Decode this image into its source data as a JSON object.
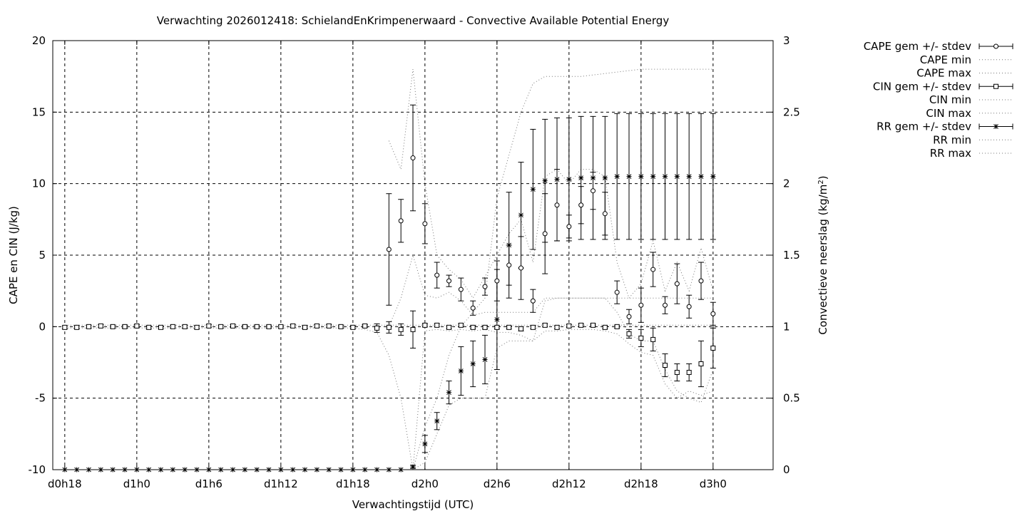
{
  "chart_data": {
    "type": "line",
    "title": "Verwachting 2026012418: SchielandEnKrimpenerwaard - Convective Available Potential Energy",
    "xlabel": "Verwachtingstijd (UTC)",
    "ylabel": "CAPE en CIN (J/kg)",
    "y2label_main": "Convectieve neerslag (kg/m",
    "y2label_sup": "2",
    "y2label_end": ")",
    "xlim": [
      -1,
      59
    ],
    "ylim": [
      -10,
      20
    ],
    "y2lim": [
      0,
      3
    ],
    "grid": true,
    "legend_position": "top-right outside",
    "x_ticks": [
      {
        "x": 0,
        "label": "d0h18"
      },
      {
        "x": 6,
        "label": "d1h0"
      },
      {
        "x": 12,
        "label": "d1h6"
      },
      {
        "x": 18,
        "label": "d1h12"
      },
      {
        "x": 24,
        "label": "d1h18"
      },
      {
        "x": 30,
        "label": "d2h0"
      },
      {
        "x": 36,
        "label": "d2h6"
      },
      {
        "x": 42,
        "label": "d2h12"
      },
      {
        "x": 48,
        "label": "d2h18"
      },
      {
        "x": 54,
        "label": "d3h0"
      }
    ],
    "y_ticks": [
      {
        "v": -10,
        "label": "-10"
      },
      {
        "v": -5,
        "label": "-5"
      },
      {
        "v": 0,
        "label": "0"
      },
      {
        "v": 5,
        "label": "5"
      },
      {
        "v": 10,
        "label": "10"
      },
      {
        "v": 15,
        "label": "15"
      },
      {
        "v": 20,
        "label": "20"
      }
    ],
    "y2_ticks": [
      {
        "v": 0,
        "label": "0"
      },
      {
        "v": 0.5,
        "label": "0.5"
      },
      {
        "v": 1,
        "label": "1"
      },
      {
        "v": 1.5,
        "label": "1.5"
      },
      {
        "v": 2,
        "label": "2"
      },
      {
        "v": 2.5,
        "label": "2.5"
      },
      {
        "v": 3,
        "label": "3"
      }
    ],
    "series": [
      {
        "name": "CAPE gem +/- stdev",
        "axis": "y",
        "marker": "circle",
        "style": "errorbars",
        "x": [
          27,
          28,
          29,
          30,
          31,
          32,
          33,
          34,
          35,
          36,
          37,
          38,
          39,
          40,
          41,
          42,
          43,
          44,
          45,
          46,
          47,
          48,
          49,
          50,
          51,
          52,
          53,
          54
        ],
        "y": [
          5.4,
          7.4,
          11.8,
          7.2,
          3.6,
          3.2,
          2.6,
          1.3,
          2.8,
          3.2,
          4.3,
          4.1,
          1.8,
          6.5,
          8.5,
          7.0,
          8.5,
          9.5,
          7.9,
          2.4,
          0.7,
          1.5,
          4.0,
          1.5,
          3.0,
          1.4,
          3.2,
          0.9
        ],
        "err": [
          3.9,
          1.5,
          3.7,
          1.4,
          0.9,
          0.4,
          0.8,
          0.5,
          0.6,
          1.4,
          1.4,
          2.2,
          0.8,
          2.8,
          2.5,
          0.8,
          1.3,
          1.3,
          1.5,
          0.8,
          0.5,
          1.2,
          1.2,
          0.6,
          1.4,
          0.8,
          1.3,
          0.8
        ]
      },
      {
        "name": "CAPE min",
        "axis": "y",
        "style": "dotted",
        "x": [
          27,
          28,
          29,
          30,
          31,
          32,
          33,
          34,
          35,
          36,
          37,
          38,
          39,
          40,
          41,
          42,
          43,
          44,
          45,
          46,
          47,
          48,
          49,
          50,
          51,
          52,
          53,
          54
        ],
        "y": [
          0.0,
          2.0,
          5.0,
          2.2,
          2.0,
          2.4,
          1.8,
          0.8,
          1.0,
          1.0,
          1.0,
          1.0,
          1.0,
          2.0,
          2.0,
          2.0,
          2.0,
          2.0,
          2.0,
          1.0,
          -0.5,
          -1.0,
          -1.0,
          -3.0,
          -4.5,
          -5.0,
          -5.3,
          -3.0
        ]
      },
      {
        "name": "CAPE max",
        "axis": "y",
        "style": "dotted",
        "x": [
          27,
          28,
          29,
          30,
          31,
          32,
          33,
          34,
          35,
          36,
          37,
          38,
          39,
          40,
          41,
          42,
          43,
          44,
          45,
          46,
          47,
          48,
          49,
          50,
          51,
          52,
          53,
          54
        ],
        "y": [
          13.0,
          11.0,
          18.0,
          10.0,
          5.0,
          4.0,
          3.3,
          2.0,
          3.5,
          5.0,
          6.5,
          7.5,
          4.5,
          10.5,
          11.0,
          10.0,
          11.0,
          11.0,
          10.5,
          4.5,
          2.0,
          3.0,
          6.0,
          2.5,
          4.5,
          2.5,
          5.5,
          2.5
        ]
      },
      {
        "name": "CIN gem +/- stdev",
        "axis": "y",
        "marker": "square",
        "style": "errorbars",
        "x": [
          0,
          1,
          2,
          3,
          4,
          5,
          6,
          7,
          8,
          9,
          10,
          11,
          12,
          13,
          14,
          15,
          16,
          17,
          18,
          19,
          20,
          21,
          22,
          23,
          24,
          25,
          26,
          27,
          28,
          29,
          30,
          31,
          32,
          33,
          34,
          35,
          36,
          37,
          38,
          39,
          40,
          41,
          42,
          43,
          44,
          45,
          46,
          47,
          48,
          49,
          50,
          51,
          52,
          53,
          54
        ],
        "y": [
          -0.05,
          -0.05,
          0.0,
          0.05,
          0.0,
          0.0,
          0.05,
          -0.05,
          -0.05,
          0.0,
          0.0,
          -0.05,
          0.05,
          0.0,
          0.05,
          0.0,
          0.0,
          0.0,
          0.0,
          0.05,
          -0.05,
          0.05,
          0.05,
          0.0,
          -0.05,
          0.05,
          -0.1,
          -0.05,
          -0.2,
          -0.2,
          0.1,
          0.1,
          -0.05,
          0.1,
          -0.05,
          -0.05,
          -0.05,
          -0.05,
          -0.15,
          -0.05,
          0.1,
          -0.05,
          0.05,
          0.1,
          0.1,
          -0.05,
          0.0,
          -0.5,
          -0.8,
          -0.9,
          -2.7,
          -3.2,
          -3.2,
          -2.6,
          -1.5
        ],
        "err": [
          0.1,
          0.1,
          0.1,
          0.1,
          0.1,
          0.1,
          0.1,
          0.1,
          0.1,
          0.1,
          0.1,
          0.1,
          0.1,
          0.1,
          0.1,
          0.1,
          0.1,
          0.1,
          0.1,
          0.1,
          0.1,
          0.1,
          0.1,
          0.1,
          0.1,
          0.1,
          0.3,
          0.4,
          0.4,
          1.3,
          0.1,
          0.1,
          0.1,
          0.1,
          0.1,
          0.1,
          0.1,
          0.1,
          0.15,
          0.1,
          0.1,
          0.1,
          0.1,
          0.1,
          0.1,
          0.1,
          0.1,
          0.3,
          0.6,
          0.8,
          0.8,
          0.6,
          0.6,
          1.6,
          1.4
        ]
      },
      {
        "name": "CIN min",
        "axis": "y",
        "style": "dotted",
        "x": [
          0,
          24,
          25,
          26,
          27,
          28,
          29,
          30,
          31,
          32,
          33,
          34,
          35,
          36,
          37,
          38,
          39,
          40,
          41,
          42,
          43,
          44,
          45,
          46,
          47,
          48,
          49,
          50,
          51,
          52,
          53,
          54
        ],
        "y": [
          -0.1,
          -0.1,
          -0.2,
          -0.4,
          -2.0,
          -5.0,
          -10.0,
          -0.3,
          -0.2,
          -0.3,
          -0.2,
          -0.3,
          -0.2,
          -0.4,
          -0.4,
          -0.6,
          -1.0,
          -0.3,
          -0.3,
          -0.2,
          -0.2,
          -0.2,
          -0.3,
          -0.5,
          -1.2,
          -1.8,
          -2.0,
          -4.0,
          -5.0,
          -4.5,
          -4.8,
          -4.5
        ]
      },
      {
        "name": "CIN max",
        "axis": "y",
        "style": "dotted",
        "x": [
          0,
          54
        ],
        "y": [
          0.1,
          0.1
        ]
      },
      {
        "name": "RR gem +/- stdev",
        "axis": "y2",
        "marker": "star",
        "style": "errorbars",
        "x": [
          0,
          1,
          2,
          3,
          4,
          5,
          6,
          7,
          8,
          9,
          10,
          11,
          12,
          13,
          14,
          15,
          16,
          17,
          18,
          19,
          20,
          21,
          22,
          23,
          24,
          25,
          26,
          27,
          28,
          29,
          30,
          31,
          32,
          33,
          34,
          35,
          36,
          37,
          38,
          39,
          40,
          41,
          42,
          43,
          44,
          45,
          46,
          47,
          48,
          49,
          50,
          51,
          52,
          53,
          54
        ],
        "y": [
          0,
          0,
          0,
          0,
          0,
          0,
          0,
          0,
          0,
          0,
          0,
          0,
          0,
          0,
          0,
          0,
          0,
          0,
          0,
          0,
          0,
          0,
          0,
          0,
          0,
          0,
          0,
          0,
          0,
          0.02,
          0.18,
          0.34,
          0.54,
          0.69,
          0.74,
          0.77,
          1.05,
          1.57,
          1.78,
          1.96,
          2.02,
          2.03,
          2.03,
          2.04,
          2.04,
          2.04,
          2.05,
          2.05,
          2.05,
          2.05,
          2.05,
          2.05,
          2.05,
          2.05,
          2.05
        ],
        "err": [
          0,
          0,
          0,
          0,
          0,
          0,
          0,
          0,
          0,
          0,
          0,
          0,
          0,
          0,
          0,
          0,
          0,
          0,
          0,
          0,
          0,
          0,
          0,
          0,
          0,
          0,
          0,
          0,
          0,
          0.01,
          0.06,
          0.06,
          0.08,
          0.17,
          0.16,
          0.17,
          0.35,
          0.37,
          0.37,
          0.42,
          0.43,
          0.43,
          0.43,
          0.43,
          0.43,
          0.43,
          0.44,
          0.44,
          0.44,
          0.44,
          0.44,
          0.44,
          0.44,
          0.44,
          0.44
        ]
      },
      {
        "name": "RR min",
        "axis": "y2",
        "style": "dotted",
        "x": [
          0,
          29,
          30,
          31,
          32,
          33,
          34,
          35,
          36,
          37,
          38,
          39,
          40,
          41,
          42,
          43,
          44,
          45,
          46,
          47,
          48,
          49,
          50,
          51,
          52,
          53,
          54
        ],
        "y": [
          0,
          0,
          0.05,
          0.25,
          0.45,
          0.5,
          0.5,
          0.5,
          0.85,
          0.9,
          0.9,
          0.9,
          1.18,
          1.2,
          1.2,
          1.2,
          1.2,
          1.2,
          1.2,
          1.2,
          1.2,
          1.2,
          1.2,
          1.2,
          1.2,
          1.2,
          1.2
        ]
      },
      {
        "name": "RR max",
        "axis": "y2",
        "style": "dotted",
        "x": [
          0,
          29,
          30,
          31,
          32,
          33,
          34,
          35,
          36,
          37,
          38,
          39,
          40,
          41,
          42,
          43,
          44,
          45,
          46,
          47,
          48,
          49,
          50,
          51,
          52,
          53,
          54
        ],
        "y": [
          0,
          0,
          0.3,
          0.5,
          0.8,
          1.0,
          1.1,
          1.2,
          1.9,
          2.2,
          2.5,
          2.7,
          2.75,
          2.75,
          2.75,
          2.75,
          2.76,
          2.77,
          2.78,
          2.79,
          2.8,
          2.8,
          2.8,
          2.8,
          2.8,
          2.8,
          2.8
        ]
      }
    ]
  }
}
